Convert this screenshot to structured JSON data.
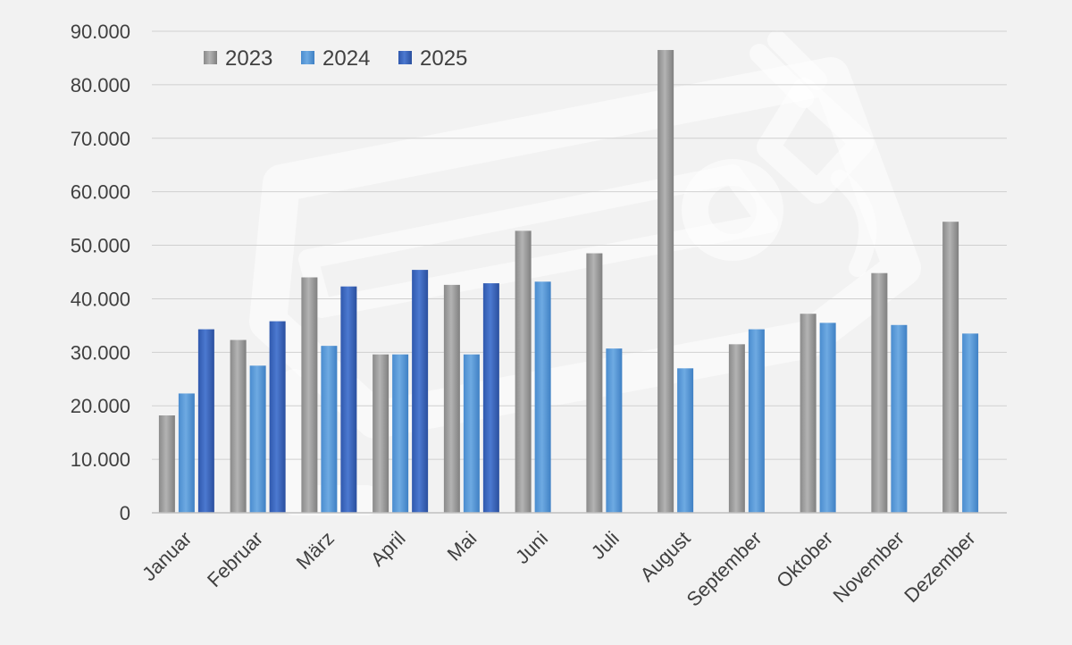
{
  "chart_data": {
    "type": "bar",
    "categories": [
      "Januar",
      "Februar",
      "März",
      "April",
      "Mai",
      "Juni",
      "Juli",
      "August",
      "September",
      "Oktober",
      "November",
      "Dezember"
    ],
    "series": [
      {
        "name": "2023",
        "color": "#9b9b9b",
        "values": [
          18200,
          32300,
          44000,
          29600,
          42600,
          52700,
          48500,
          86500,
          31500,
          37200,
          44800,
          54400
        ]
      },
      {
        "name": "2024",
        "color": "#5b9bd5",
        "values": [
          22300,
          27500,
          31200,
          29600,
          29600,
          43200,
          30700,
          27000,
          34300,
          35500,
          35100,
          33500
        ]
      },
      {
        "name": "2025",
        "color": "#3a67c0",
        "values": [
          34300,
          35800,
          42300,
          45400,
          42900,
          null,
          null,
          null,
          null,
          null,
          null,
          null
        ]
      }
    ],
    "y_ticks": [
      "0",
      "10.000",
      "20.000",
      "30.000",
      "40.000",
      "50.000",
      "60.000",
      "70.000",
      "80.000",
      "90.000"
    ],
    "ylim": [
      0,
      90000
    ],
    "title": "",
    "xlabel": "",
    "ylabel": "",
    "grid": true,
    "legend_position": "top-left",
    "watermark_icon": "electric-car-plug-icon"
  }
}
